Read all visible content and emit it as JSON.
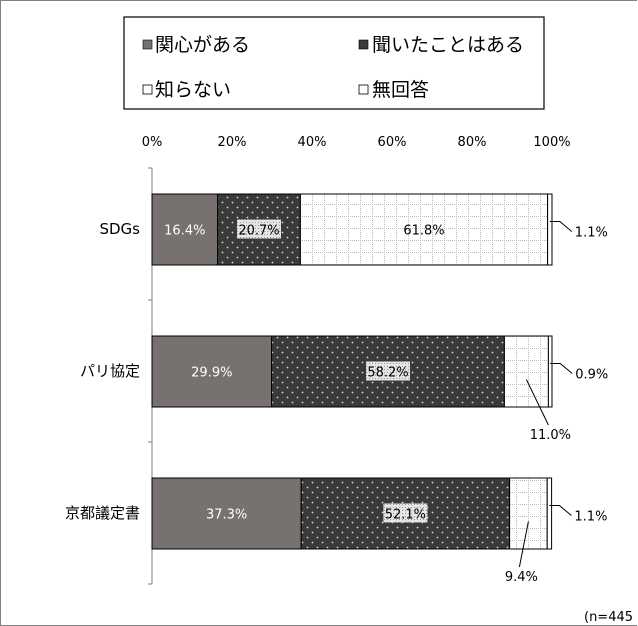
{
  "chart_data": {
    "type": "bar",
    "orientation": "horizontal",
    "stacked_percent": true,
    "categories": [
      "SDGs",
      "パリ協定",
      "京都議定書"
    ],
    "series": [
      {
        "name": "関心がある",
        "values": [
          16.4,
          29.9,
          37.3
        ],
        "color": "#777170",
        "pattern": "solid"
      },
      {
        "name": "聞いたことはある",
        "values": [
          20.7,
          58.2,
          52.1
        ],
        "color": "#3a3a3a",
        "pattern": "dots"
      },
      {
        "name": "知らない",
        "values": [
          61.8,
          11.0,
          9.4
        ],
        "color": "#ffffff",
        "pattern": "grid"
      },
      {
        "name": "無回答",
        "values": [
          1.1,
          0.9,
          1.1
        ],
        "color": "#ffffff",
        "pattern": "plain"
      }
    ],
    "value_labels": [
      [
        "16.4%",
        "20.7%",
        "61.8%",
        "1.1%"
      ],
      [
        "29.9%",
        "58.2%",
        "11.0%",
        "0.9%"
      ],
      [
        "37.3%",
        "52.1%",
        "9.4%",
        "1.1%"
      ]
    ],
    "x_ticks": [
      "0%",
      "20%",
      "40%",
      "60%",
      "80%",
      "100%"
    ],
    "xlim": [
      0,
      100
    ],
    "legend_position": "top",
    "grid": false,
    "note": "(n=445"
  }
}
